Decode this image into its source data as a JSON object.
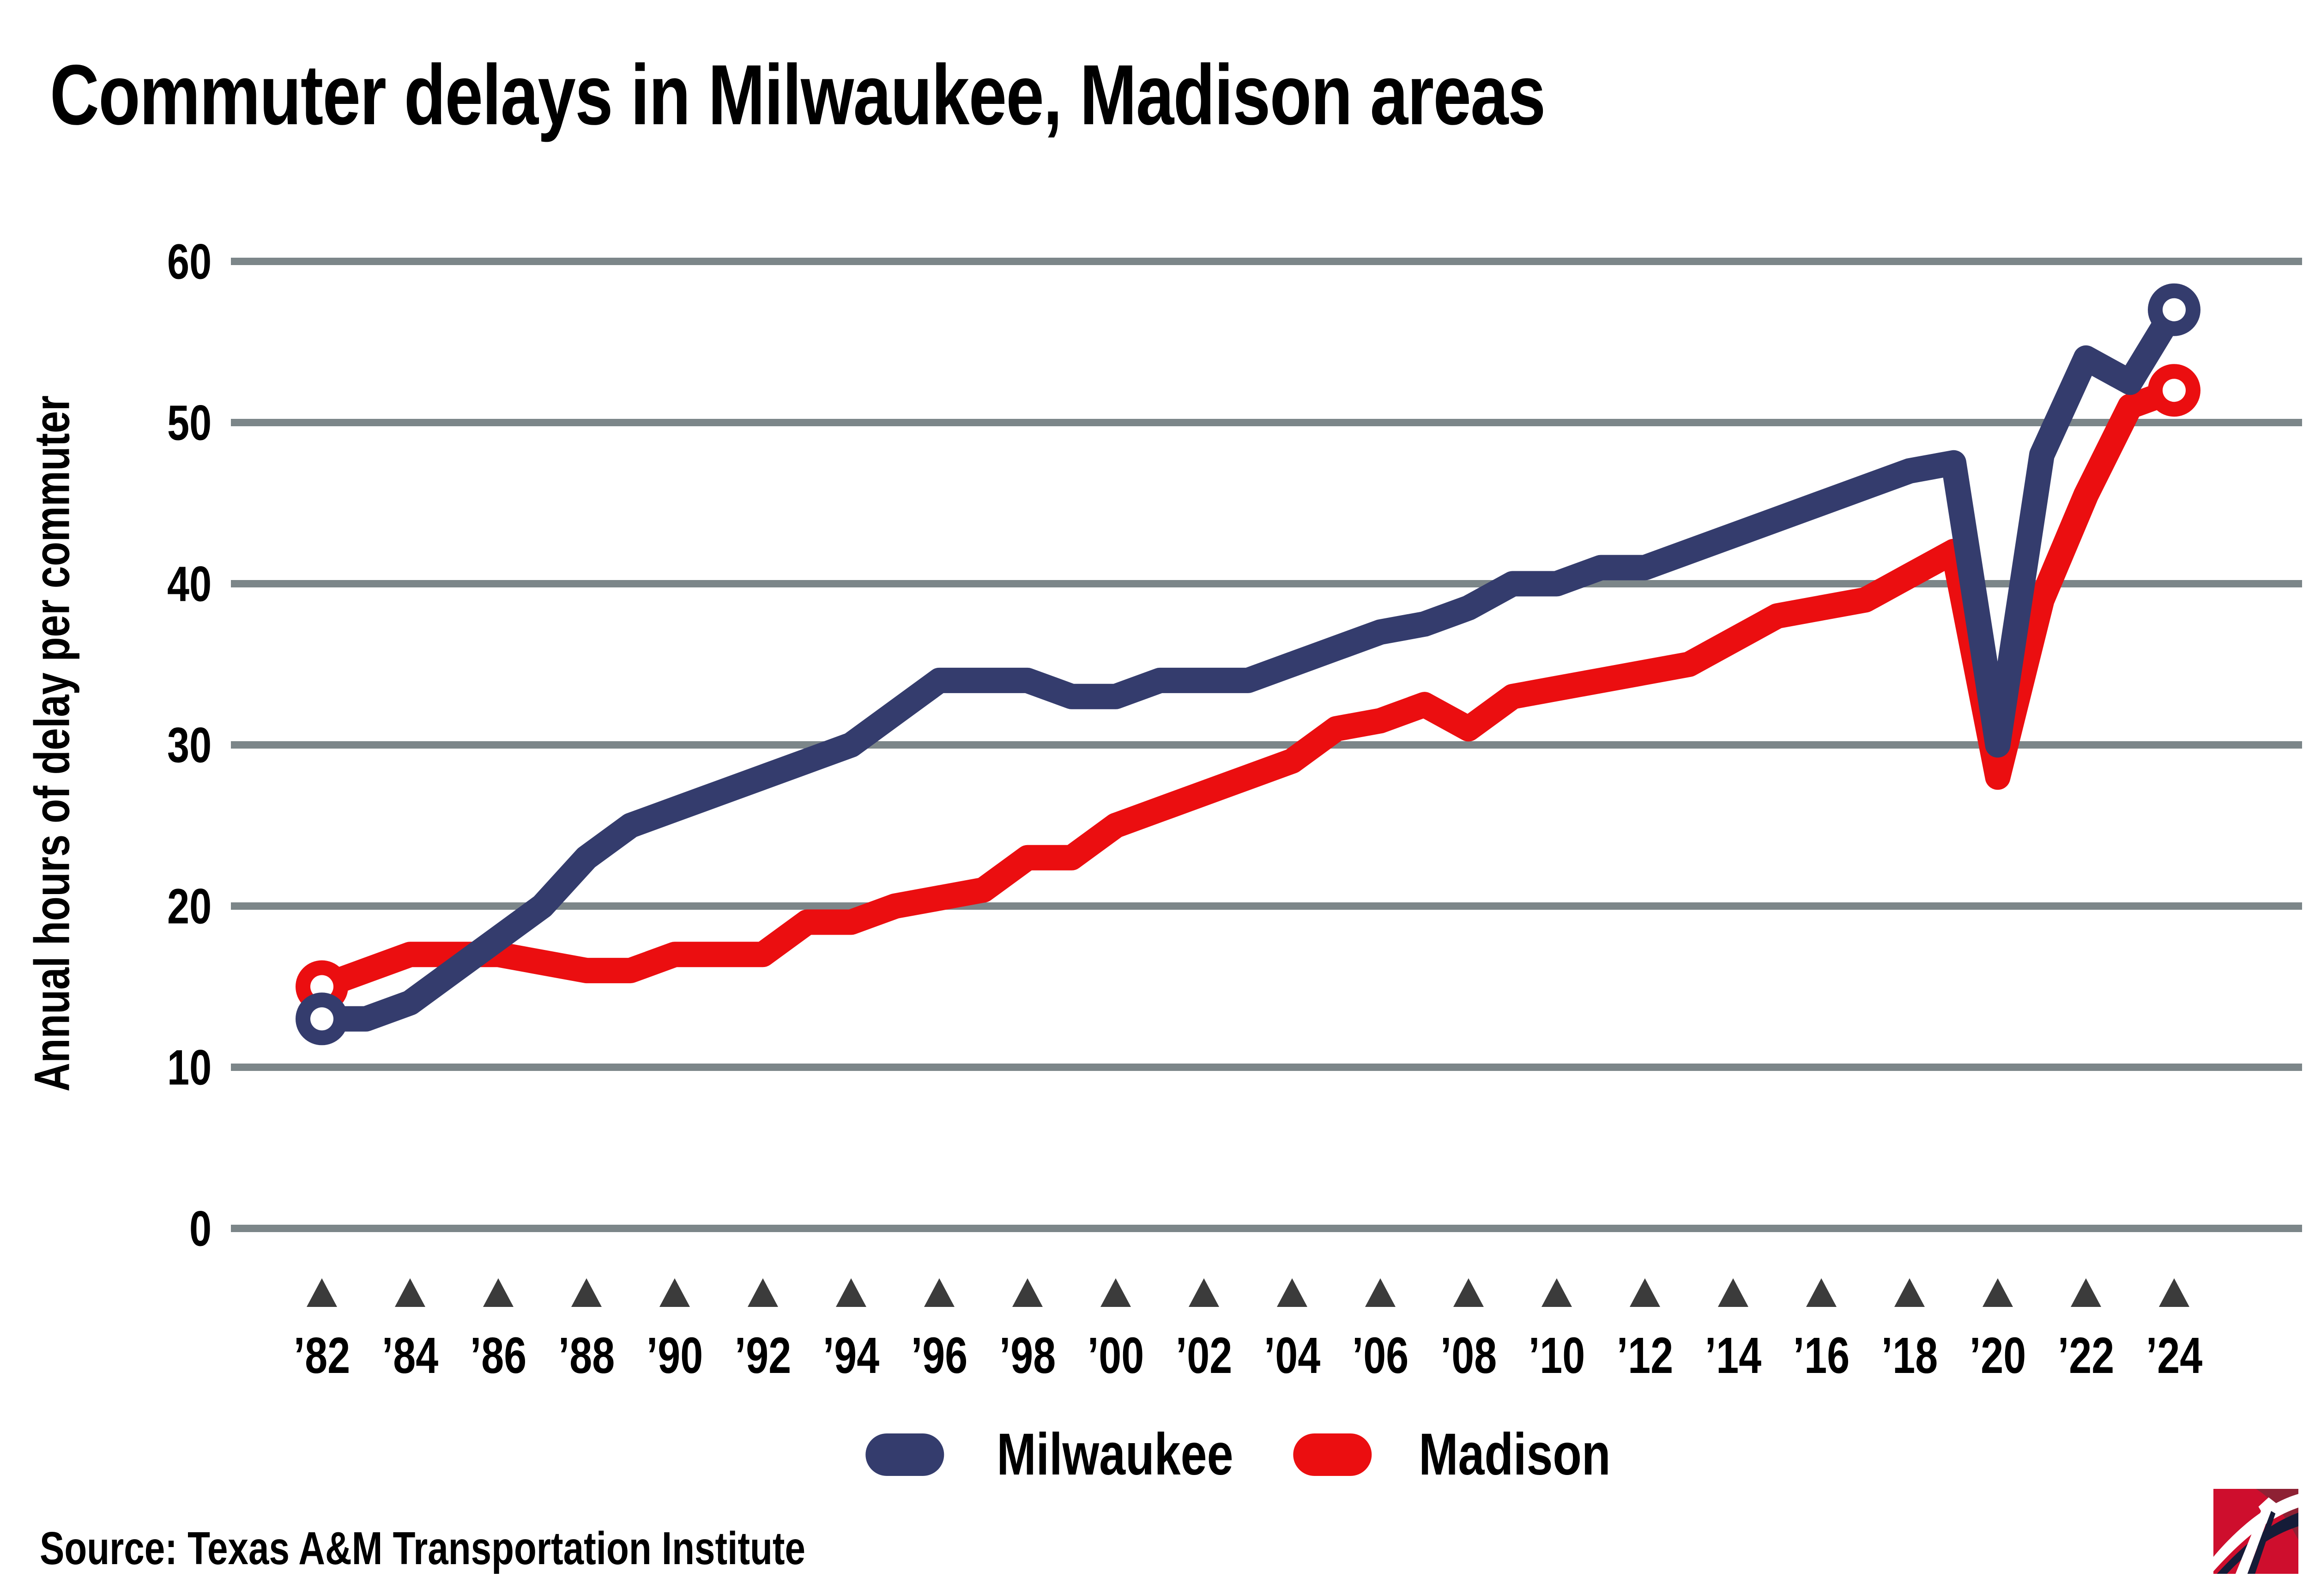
{
  "title": "Commuter delays in Milwaukee, Madison areas",
  "y_axis": {
    "label": "Annual hours of delay per commuter",
    "ticks": [
      0,
      10,
      20,
      30,
      40,
      50,
      60
    ]
  },
  "x_axis": {
    "tick_labels": [
      "’82",
      "’84",
      "’86",
      "’88",
      "’90",
      "’92",
      "’94",
      "’96",
      "’98",
      "’00",
      "’02",
      "’04",
      "’06",
      "’08",
      "’10",
      "’12",
      "’14",
      "’16",
      "’18",
      "’20",
      "’22",
      "’24"
    ],
    "tick_years": [
      1982,
      1984,
      1986,
      1988,
      1990,
      1992,
      1994,
      1996,
      1998,
      2000,
      2002,
      2004,
      2006,
      2008,
      2010,
      2012,
      2014,
      2016,
      2018,
      2020,
      2022,
      2024
    ]
  },
  "legend": [
    {
      "name": "Milwaukee",
      "color": "#343c6d"
    },
    {
      "name": "Madison",
      "color": "#eb0e10"
    }
  ],
  "source": "Source: Texas A&M Transportation Institute",
  "colors": {
    "milwaukee": "#343c6d",
    "madison": "#eb0e10",
    "gridline": "#7c8689",
    "tick_triangle": "#3b3b3b",
    "text": "#000000",
    "logo_red": "#ce0e2d",
    "logo_maroon": "#8e2134",
    "logo_dark": "#151c38"
  },
  "chart_data": {
    "type": "line",
    "title": "Commuter delays in Milwaukee, Madison areas",
    "xlabel": "",
    "ylabel": "Annual hours of delay per commuter",
    "ylim": [
      0,
      60
    ],
    "yticks": [
      0,
      10,
      20,
      30,
      40,
      50,
      60
    ],
    "grid": "horizontal",
    "legend_position": "bottom",
    "x": [
      1982,
      1983,
      1984,
      1985,
      1986,
      1987,
      1988,
      1989,
      1990,
      1991,
      1992,
      1993,
      1994,
      1995,
      1996,
      1997,
      1998,
      1999,
      2000,
      2001,
      2002,
      2003,
      2004,
      2005,
      2006,
      2007,
      2008,
      2009,
      2010,
      2011,
      2012,
      2013,
      2014,
      2015,
      2016,
      2017,
      2018,
      2019,
      2020,
      2021,
      2022,
      2023,
      2024
    ],
    "series": [
      {
        "name": "Milwaukee",
        "color": "#343c6d",
        "endpoint_markers": true,
        "values": [
          13,
          13,
          14,
          16,
          18,
          20,
          23,
          25,
          26,
          27,
          28,
          29,
          30,
          32,
          34,
          34,
          34,
          33,
          33,
          34,
          34,
          34,
          35,
          36,
          37,
          37.5,
          38.5,
          40,
          40,
          41,
          41,
          42,
          43,
          44,
          45,
          46,
          47,
          47.5,
          30,
          48,
          54,
          52.5,
          57
        ]
      },
      {
        "name": "Madison",
        "color": "#eb0e10",
        "endpoint_markers": true,
        "values": [
          15,
          16,
          17,
          17,
          17,
          16.5,
          16,
          16,
          17,
          17,
          17,
          19,
          19,
          20,
          20.5,
          21,
          23,
          23,
          25,
          26,
          27,
          28,
          29,
          31,
          31.5,
          32.5,
          31,
          33,
          33.5,
          34,
          34.5,
          35,
          36.5,
          38,
          38.5,
          39,
          40.5,
          42,
          28,
          39,
          45.5,
          51,
          52
        ]
      }
    ]
  }
}
